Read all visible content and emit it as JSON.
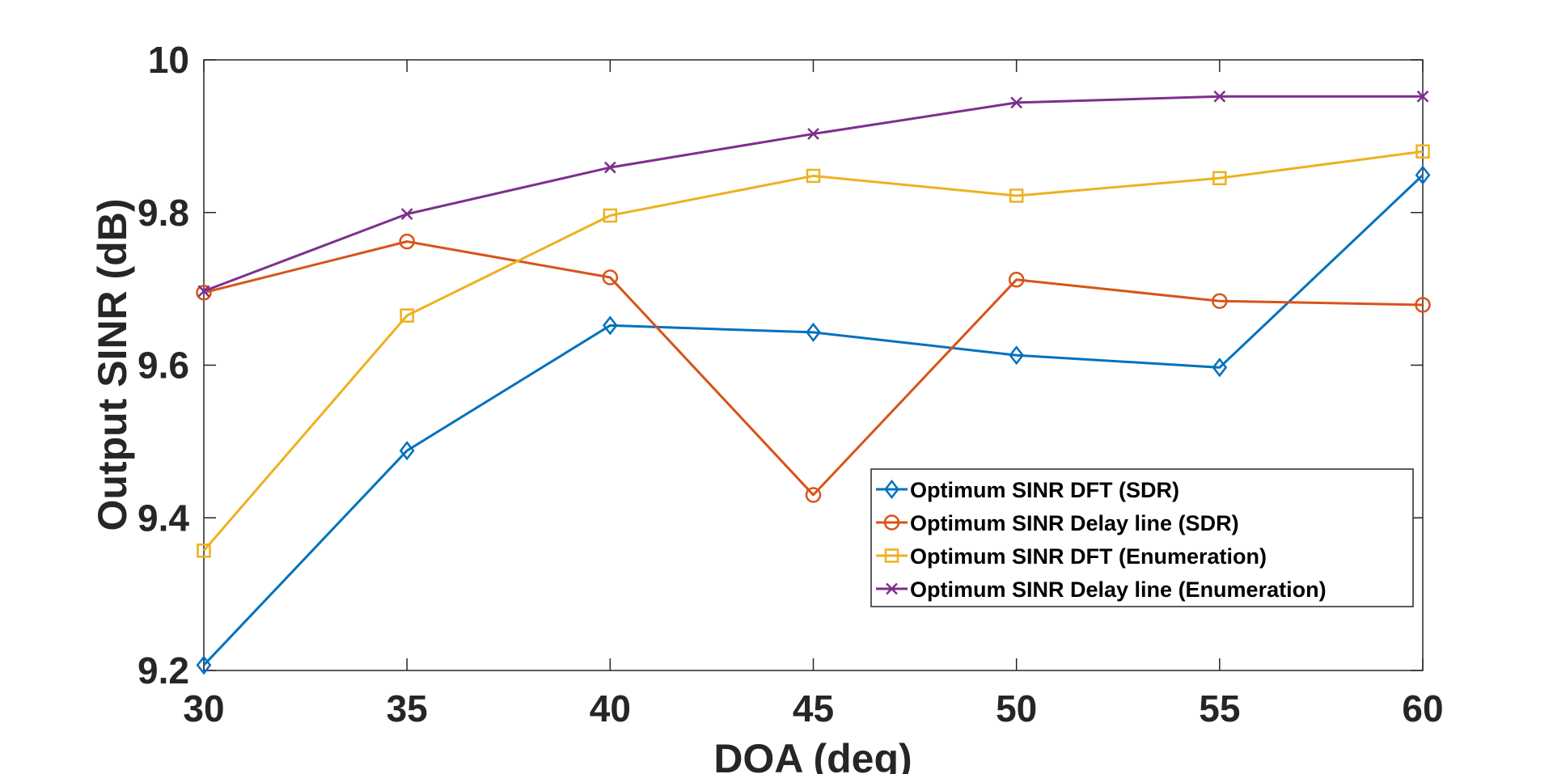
{
  "chart_data": {
    "type": "line",
    "title": "",
    "xlabel": "DOA (deg)",
    "ylabel": "Output SINR (dB)",
    "x": [
      30,
      35,
      40,
      45,
      50,
      55,
      60
    ],
    "xlim": [
      30,
      60
    ],
    "ylim": [
      9.2,
      10
    ],
    "xticks": [
      "30",
      "35",
      "40",
      "45",
      "50",
      "55",
      "60"
    ],
    "yticks": [
      "9.2",
      "9.4",
      "9.6",
      "9.8",
      "10"
    ],
    "ytick_values": [
      9.2,
      9.4,
      9.6,
      9.8,
      10
    ],
    "grid": false,
    "legend_position": "lower-right",
    "series": [
      {
        "name": "Optimum SINR DFT (SDR)",
        "color": "#0072BD",
        "marker": "diamond",
        "values": [
          9.207,
          9.488,
          9.652,
          9.643,
          9.613,
          9.597,
          9.849
        ]
      },
      {
        "name": "Optimum SINR Delay line (SDR)",
        "color": "#D95319",
        "marker": "circle",
        "values": [
          9.695,
          9.762,
          9.715,
          9.43,
          9.712,
          9.684,
          9.679
        ]
      },
      {
        "name": "Optimum SINR DFT (Enumeration)",
        "color": "#EDB120",
        "marker": "square",
        "values": [
          9.357,
          9.665,
          9.796,
          9.848,
          9.822,
          9.845,
          9.88
        ]
      },
      {
        "name": "Optimum SINR Delay line (Enumeration)",
        "color": "#7E2F8E",
        "marker": "x",
        "values": [
          9.697,
          9.798,
          9.859,
          9.903,
          9.944,
          9.952,
          9.952
        ]
      }
    ]
  }
}
